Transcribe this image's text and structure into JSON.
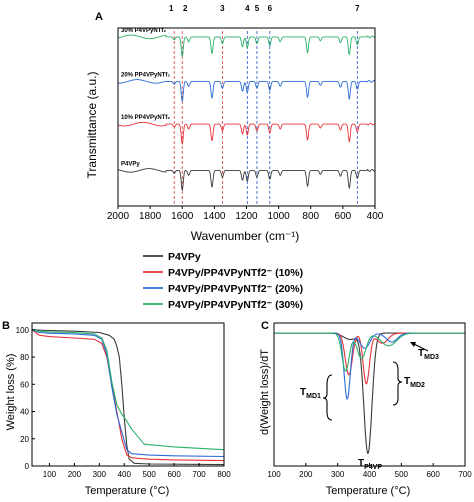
{
  "colors": {
    "P4VPy": "#3a3a3a",
    "P4VPy/PP4VPyNTf2- (10%)": "#e8333b",
    "P4VPy/PP4VPyNTf2- (20%)": "#2c6bd6",
    "P4VPy/PP4VPyNTf2- (30%)": "#2bb06a",
    "marker_red": "#d6383f",
    "marker_blue": "#2c52c4"
  },
  "legend": {
    "entries": [
      {
        "label": "P4VPy",
        "series": "P4VPy"
      },
      {
        "label": "P4VPy/PP4VPyNTf2⁻ (10%)",
        "series": "P4VPy/PP4VPyNTf2- (10%)"
      },
      {
        "label": "P4VPy/PP4VPyNTf2⁻ (20%)",
        "series": "P4VPy/PP4VPyNTf2- (20%)"
      },
      {
        "label": "P4VPy/PP4VPyNTf2⁻ (30%)",
        "series": "P4VPy/PP4VPyNTf2- (30%)"
      }
    ]
  },
  "chart_data": [
    {
      "panel": "A",
      "type": "line",
      "xlabel": "Wavenumber (cm⁻¹)",
      "ylabel": "Transmittance (a.u.)",
      "xlim": [
        2000,
        400
      ],
      "x_reversed": true,
      "xticks": [
        2000,
        1800,
        1600,
        1400,
        1200,
        1000,
        800,
        600,
        400
      ],
      "markers": [
        {
          "label": "1",
          "x": 1650,
          "color": "red"
        },
        {
          "label": "2",
          "x": 1600,
          "color": "red"
        },
        {
          "label": "3",
          "x": 1350,
          "color": "red"
        },
        {
          "label": "4",
          "x": 1195,
          "color": "blue"
        },
        {
          "label": "5",
          "x": 1135,
          "color": "blue"
        },
        {
          "label": "6",
          "x": 1055,
          "color": "blue"
        },
        {
          "label": "7",
          "x": 510,
          "color": "blue"
        }
      ],
      "peaks": [
        {
          "x": 1650,
          "depth": 0.15
        },
        {
          "x": 1600,
          "depth": 1.0
        },
        {
          "x": 1560,
          "depth": 0.25
        },
        {
          "x": 1415,
          "depth": 0.85
        },
        {
          "x": 1350,
          "depth": 0.35
        },
        {
          "x": 1225,
          "depth": 0.5
        },
        {
          "x": 1195,
          "depth": 0.55
        },
        {
          "x": 1135,
          "depth": 0.35
        },
        {
          "x": 1055,
          "depth": 0.45
        },
        {
          "x": 990,
          "depth": 0.25
        },
        {
          "x": 820,
          "depth": 0.8
        },
        {
          "x": 740,
          "depth": 0.2
        },
        {
          "x": 615,
          "depth": 0.3
        },
        {
          "x": 560,
          "depth": 0.9
        },
        {
          "x": 510,
          "depth": 0.4
        }
      ],
      "series": [
        {
          "name": "30% P4VPyNTf₂",
          "color_key": "P4VPy/PP4VPyNTf2- (30%)",
          "baseline": 0.95
        },
        {
          "name": "20% PP4VPyNTf₂",
          "color_key": "P4VPy/PP4VPyNTf2- (20%)",
          "baseline": 0.7
        },
        {
          "name": "10% PP4VPyNTf₂",
          "color_key": "P4VPy/PP4VPyNTf2- (10%)",
          "baseline": 0.46
        },
        {
          "name": "P4VPy",
          "color_key": "P4VPy",
          "baseline": 0.2
        }
      ]
    },
    {
      "panel": "B",
      "type": "line",
      "xlabel": "Temperature (°C)",
      "ylabel": "Weight loss (%)",
      "xlim": [
        30,
        800
      ],
      "ylim": [
        0,
        105
      ],
      "xticks": [
        100,
        200,
        300,
        400,
        500,
        600,
        700,
        800
      ],
      "yticks": [
        0,
        20,
        40,
        60,
        80,
        100
      ],
      "series": [
        {
          "name": "P4VPy",
          "color_key": "P4VPy",
          "x": [
            30,
            100,
            200,
            300,
            340,
            360,
            370,
            380,
            390,
            400,
            410,
            420,
            440,
            500,
            800
          ],
          "y": [
            100,
            99.5,
            99,
            98,
            96,
            93,
            88,
            80,
            60,
            35,
            15,
            5,
            2,
            1.5,
            1
          ]
        },
        {
          "name": "P4VPy/PP4VPyNTf2- (10%)",
          "color_key": "P4VPy/PP4VPyNTf2- (10%)",
          "x": [
            30,
            60,
            100,
            200,
            280,
            310,
            330,
            350,
            370,
            390,
            410,
            430,
            500,
            600,
            800
          ],
          "y": [
            100,
            96,
            95,
            94,
            93,
            90,
            80,
            60,
            40,
            20,
            8,
            6,
            5,
            4.5,
            4
          ]
        },
        {
          "name": "P4VPy/PP4VPyNTf2- (20%)",
          "color_key": "P4VPy/PP4VPyNTf2- (20%)",
          "x": [
            30,
            60,
            100,
            200,
            280,
            310,
            330,
            350,
            370,
            390,
            410,
            430,
            500,
            600,
            800
          ],
          "y": [
            100,
            98,
            97.5,
            97,
            96,
            93,
            82,
            58,
            38,
            25,
            12,
            9,
            8,
            7.5,
            7
          ]
        },
        {
          "name": "P4VPy/PP4VPyNTf2- (30%)",
          "color_key": "P4VPy/PP4VPyNTf2- (30%)",
          "x": [
            30,
            60,
            100,
            200,
            280,
            310,
            330,
            350,
            370,
            390,
            410,
            430,
            480,
            600,
            800
          ],
          "y": [
            100,
            99,
            98.5,
            98,
            97,
            94,
            85,
            62,
            45,
            38,
            33,
            27,
            16,
            14,
            12
          ]
        }
      ]
    },
    {
      "panel": "C",
      "type": "line",
      "xlabel": "Temperature (°C)",
      "ylabel": "d(Weight loss)/dT",
      "xlim": [
        100,
        700
      ],
      "ylim": [
        -1.05,
        0.08
      ],
      "xticks": [
        100,
        200,
        300,
        400,
        500,
        600,
        700
      ],
      "annotations": [
        "T",
        "MD1",
        "T",
        "MD2",
        "T",
        "MD3",
        "T",
        "P4VP"
      ],
      "series": [
        {
          "name": "P4VPy",
          "color_key": "P4VPy",
          "peaks": [
            {
              "x": 395,
              "amp": -0.95,
              "w": 18
            },
            {
              "x": 340,
              "amp": -0.05,
              "w": 30
            }
          ]
        },
        {
          "name": "P4VPy/PP4VPyNTf2- (10%)",
          "color_key": "P4VPy/PP4VPyNTf2- (10%)",
          "peaks": [
            {
              "x": 335,
              "amp": -0.33,
              "w": 16
            },
            {
              "x": 390,
              "amp": -0.4,
              "w": 14
            },
            {
              "x": 440,
              "amp": -0.08,
              "w": 25
            }
          ]
        },
        {
          "name": "P4VPy/PP4VPyNTf2- (20%)",
          "color_key": "P4VPy/PP4VPyNTf2- (20%)",
          "peaks": [
            {
              "x": 330,
              "amp": -0.52,
              "w": 14
            },
            {
              "x": 385,
              "amp": -0.12,
              "w": 22
            },
            {
              "x": 470,
              "amp": -0.07,
              "w": 25
            }
          ]
        },
        {
          "name": "P4VPy/PP4VPyNTf2- (30%)",
          "color_key": "P4VPy/PP4VPyNTf2- (30%)",
          "peaks": [
            {
              "x": 325,
              "amp": -0.3,
              "w": 16
            },
            {
              "x": 375,
              "amp": -0.2,
              "w": 20
            },
            {
              "x": 460,
              "amp": -0.1,
              "w": 35
            }
          ]
        }
      ]
    }
  ]
}
